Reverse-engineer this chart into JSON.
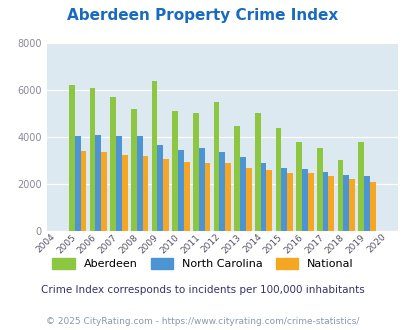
{
  "title": "Aberdeen Property Crime Index",
  "years": [
    2004,
    2005,
    2006,
    2007,
    2008,
    2009,
    2010,
    2011,
    2012,
    2013,
    2014,
    2015,
    2016,
    2017,
    2018,
    2019,
    2020
  ],
  "aberdeen": [
    null,
    6200,
    6100,
    5700,
    5200,
    6400,
    5100,
    5000,
    5500,
    4450,
    5000,
    4400,
    3800,
    3550,
    3000,
    3800,
    null
  ],
  "north_carolina": [
    null,
    4050,
    4100,
    4050,
    4050,
    3650,
    3450,
    3550,
    3350,
    3150,
    2900,
    2700,
    2650,
    2500,
    2400,
    2350,
    null
  ],
  "national": [
    null,
    3400,
    3350,
    3250,
    3200,
    3050,
    2950,
    2900,
    2900,
    2700,
    2600,
    2450,
    2450,
    2350,
    2200,
    2100,
    null
  ],
  "aberdeen_color": "#8dc641",
  "nc_color": "#4d94d4",
  "national_color": "#f5a623",
  "bg_color": "#dce9f0",
  "ylim": [
    0,
    8000
  ],
  "yticks": [
    0,
    2000,
    4000,
    6000,
    8000
  ],
  "subtitle": "Crime Index corresponds to incidents per 100,000 inhabitants",
  "footer": "© 2025 CityRating.com - https://www.cityrating.com/crime-statistics/",
  "legend_labels": [
    "Aberdeen",
    "North Carolina",
    "National"
  ],
  "title_color": "#1a6bbf",
  "subtitle_color": "#333366",
  "footer_color": "#8899aa"
}
